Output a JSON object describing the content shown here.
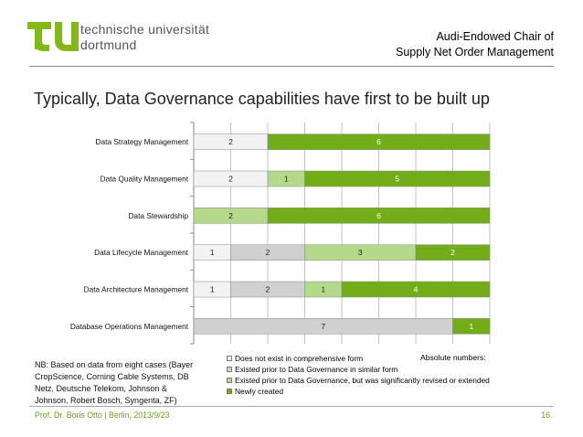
{
  "header": {
    "logo_line1": "technische universität",
    "logo_line2": "dortmund",
    "chair_line1": "Audi-Endowed Chair of",
    "chair_line2": "Supply Net Order Management",
    "logo_color": "#84b819"
  },
  "slide": {
    "title": "Typically, Data Governance capabilities have first to be built up"
  },
  "chart_data": {
    "type": "bar",
    "orientation": "horizontal",
    "stacked": true,
    "categories": [
      "Data Strategy Management",
      "Data Quality Management",
      "Data Stewardship",
      "Data Lifecycle Management",
      "Data Architecture Management",
      "Database Operations Management"
    ],
    "series": [
      {
        "name": "Does not exist in comprehensive form",
        "color": "#f2f2f2",
        "values": [
          2,
          2,
          0,
          1,
          1,
          0
        ]
      },
      {
        "name": "Existed prior to Data Governance in similar form",
        "color": "#d0d0d0",
        "values": [
          0,
          0,
          0,
          2,
          2,
          7
        ]
      },
      {
        "name": "Existed prior to Data Governance, but was significantly revised or extended",
        "color": "#b5d98a",
        "values": [
          0,
          1,
          2,
          3,
          1,
          0
        ]
      },
      {
        "name": "Newly created",
        "color": "#72ad19",
        "values": [
          6,
          5,
          6,
          2,
          4,
          1
        ]
      }
    ],
    "xlim": [
      0,
      8
    ],
    "grid": true,
    "legend_position": "bottom",
    "legend_title": "Absolute numbers:"
  },
  "notes": {
    "text": "NB: Based on data from eight cases (Bayer CropScience, Corning Cable Systems, DB Netz, Deutsche Telekom, Johnson & Johnson, Robert Bosch, Syngenta, ZF)"
  },
  "footer": {
    "left": "Prof. Dr. Boris Otto | Berlin, 2013/9/23",
    "page_number": "16"
  }
}
